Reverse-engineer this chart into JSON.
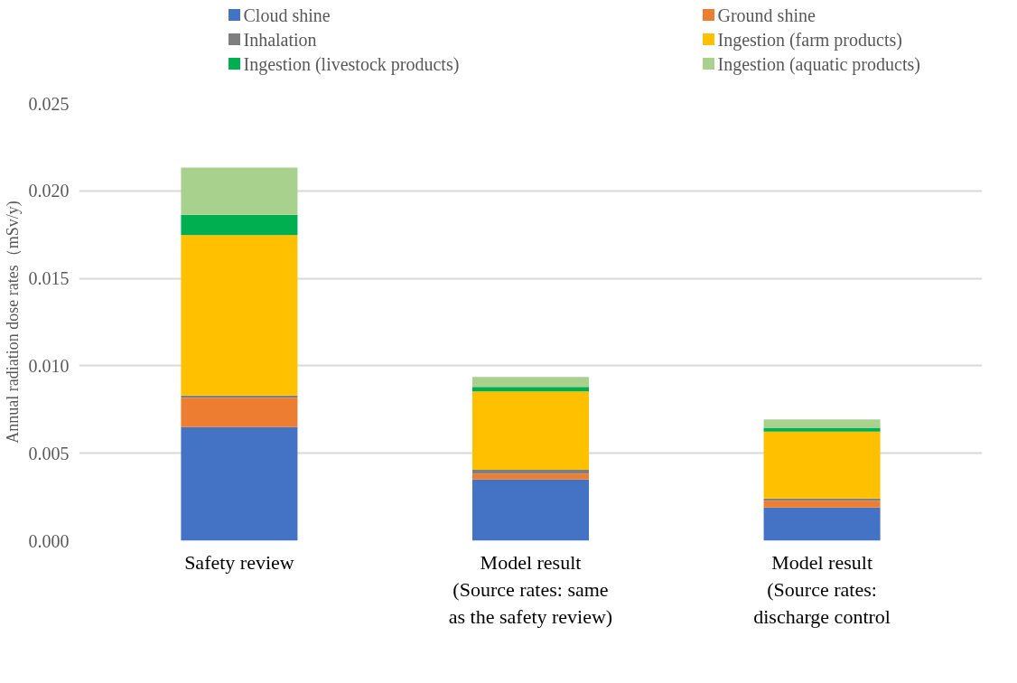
{
  "chart_data": {
    "type": "bar",
    "stacked": true,
    "ylabel": "Annual radiation dose rates（mSv/y)",
    "categories": [
      "Safety review",
      "Model result\n(Source rates: same\nas the safety review)",
      "Model result\n(Source rates:\ndischarge control"
    ],
    "series": [
      {
        "name": "Cloud shine",
        "color": "#4472c4",
        "values": [
          0.0065,
          0.0035,
          0.0019
        ]
      },
      {
        "name": "Ground shine",
        "color": "#ed7d31",
        "values": [
          0.00168,
          0.00034,
          0.00038
        ]
      },
      {
        "name": "Inhalation",
        "color": "#7f7f7f",
        "values": [
          0.00012,
          0.00021,
          0.00014
        ]
      },
      {
        "name": "Ingestion (farm products)",
        "color": "#ffc000",
        "values": [
          0.00917,
          0.00448,
          0.00382
        ]
      },
      {
        "name": "Ingestion (livestock products)",
        "color": "#00b050",
        "values": [
          0.00116,
          0.00026,
          0.00022
        ]
      },
      {
        "name": "Ingestion (aquatic products)",
        "color": "#a9d18e",
        "values": [
          0.0027,
          0.00057,
          0.00048
        ]
      }
    ],
    "ylim": [
      0,
      0.025
    ],
    "yticks": [
      {
        "value": 0,
        "label": "0.000"
      },
      {
        "value": 0.005,
        "label": "0.005"
      },
      {
        "value": 0.01,
        "label": "0.010"
      },
      {
        "value": 0.015,
        "label": "0.015"
      },
      {
        "value": 0.02,
        "label": "0.020"
      },
      {
        "value": 0.025,
        "label": "0.025"
      }
    ],
    "grid": "y",
    "legend": "top"
  }
}
